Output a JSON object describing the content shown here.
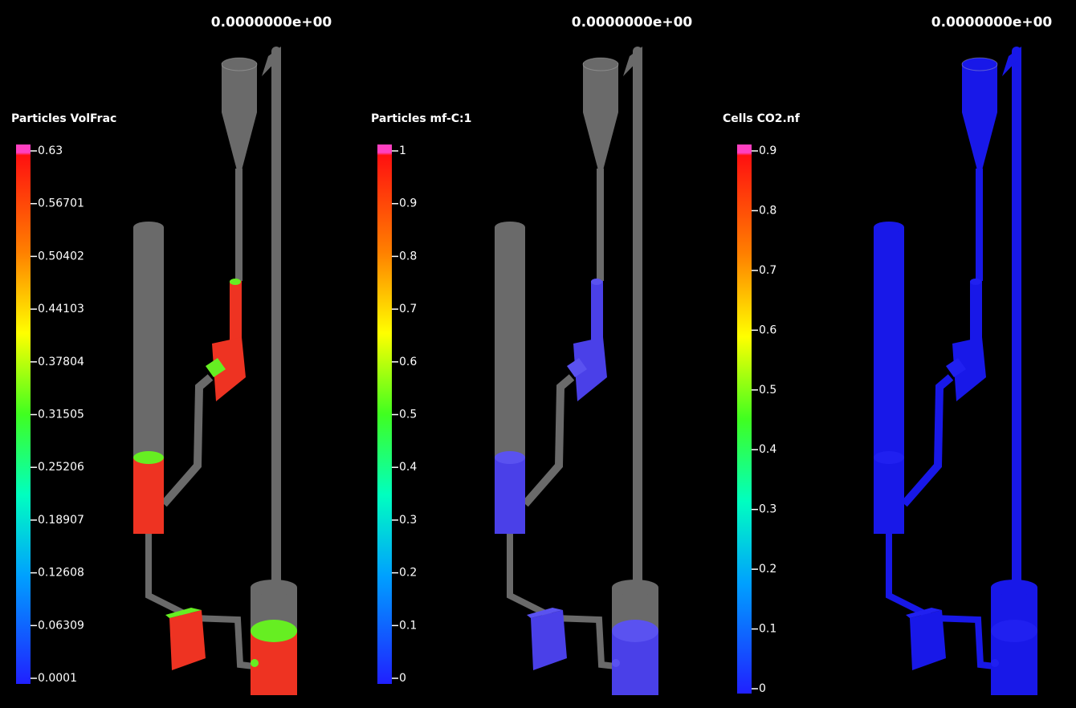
{
  "panels": [
    {
      "time": "0.0000000e+00",
      "title": "Particles VolFrac",
      "ticks": [
        "0.63",
        "0.56701",
        "0.50402",
        "0.44103",
        "0.37804",
        "0.31505",
        "0.25206",
        "0.18907",
        "0.12608",
        "0.06309",
        "0.0001"
      ]
    },
    {
      "time": "0.0000000e+00",
      "title": "Particles mf-C:1",
      "ticks": [
        "1",
        "0.9",
        "0.8",
        "0.7",
        "0.6",
        "0.5",
        "0.4",
        "0.3",
        "0.2",
        "0.1",
        "0"
      ]
    },
    {
      "time": "0.0000000e+00",
      "title": "Cells CO2.nf",
      "ticks": [
        "0.9",
        "0.8",
        "0.7",
        "0.6",
        "0.5",
        "0.4",
        "0.3",
        "0.2",
        "0.1",
        "0"
      ]
    }
  ]
}
